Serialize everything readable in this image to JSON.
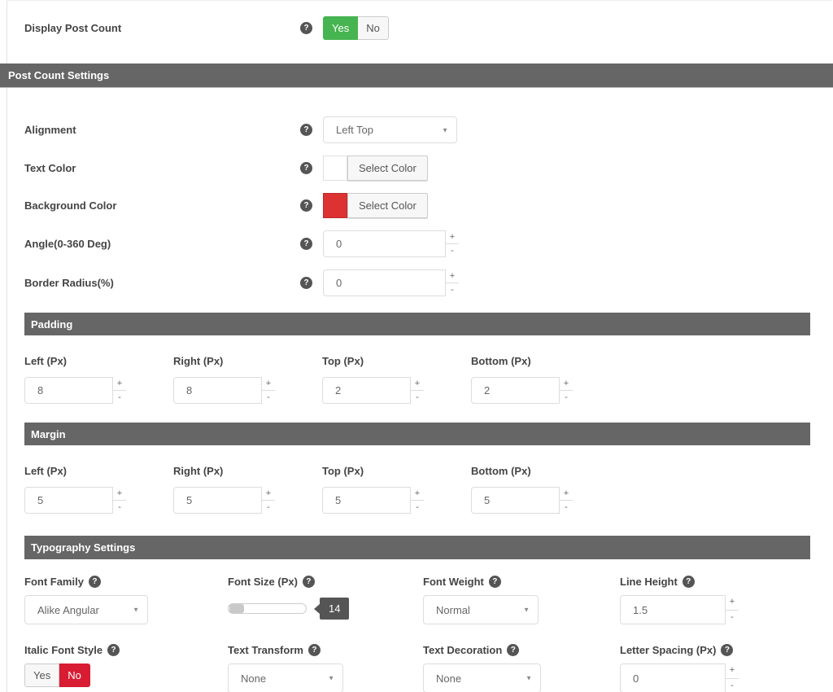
{
  "colors": {
    "accent_green": "#46b450",
    "toggle_red": "#d81c33",
    "swatch_white": "#ffffff",
    "swatch_red": "#dc3232",
    "bar_bg": "#666666",
    "tooltip_bg": "#555555"
  },
  "icons": {
    "help": "?",
    "spinner_plus": "+",
    "spinner_minus": "-",
    "dropdown_arrow": "▼"
  },
  "display_post_count": {
    "label": "Display Post Count",
    "yes_label": "Yes",
    "no_label": "No",
    "selected": "Yes"
  },
  "section": {
    "title": "Post Count Settings"
  },
  "fields": {
    "alignment": {
      "label": "Alignment",
      "value": "Left Top"
    },
    "text_color": {
      "label": "Text Color",
      "button": "Select Color"
    },
    "background_color": {
      "label": "Background Color",
      "button": "Select Color"
    },
    "angle": {
      "label": "Angle(0-360 Deg)",
      "value": "0"
    },
    "border_radius": {
      "label": "Border Radius(%)",
      "value": "0"
    }
  },
  "padding": {
    "title": "Padding",
    "fields": [
      {
        "label": "Left (Px)",
        "value": "8"
      },
      {
        "label": "Right (Px)",
        "value": "8"
      },
      {
        "label": "Top (Px)",
        "value": "2"
      },
      {
        "label": "Bottom (Px)",
        "value": "2"
      }
    ]
  },
  "margin": {
    "title": "Margin",
    "fields": [
      {
        "label": "Left (Px)",
        "value": "5"
      },
      {
        "label": "Right (Px)",
        "value": "5"
      },
      {
        "label": "Top (Px)",
        "value": "5"
      },
      {
        "label": "Bottom (Px)",
        "value": "5"
      }
    ]
  },
  "typography": {
    "title": "Typography Settings",
    "font_family": {
      "label": "Font Family",
      "value": "Alike Angular"
    },
    "font_size": {
      "label": "Font Size (Px)",
      "value": "14"
    },
    "font_weight": {
      "label": "Font Weight",
      "value": "Normal"
    },
    "line_height": {
      "label": "Line Height",
      "value": "1.5"
    },
    "italic": {
      "label": "Italic Font Style",
      "yes_label": "Yes",
      "no_label": "No",
      "selected": "No"
    },
    "text_transform": {
      "label": "Text Transform",
      "value": "None"
    },
    "text_decoration": {
      "label": "Text Decoration",
      "value": "None"
    },
    "letter_spacing": {
      "label": "Letter Spacing (Px)",
      "value": "0"
    }
  }
}
